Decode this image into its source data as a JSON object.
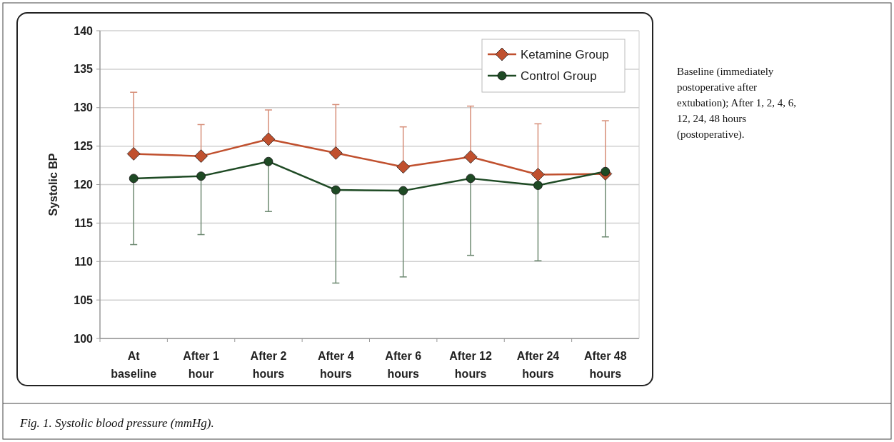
{
  "chart_data": {
    "type": "line",
    "ylabel": "Systolic BP",
    "categories": [
      "At baseline",
      "After 1 hour",
      "After 2 hours",
      "After 4 hours",
      "After 6 hours",
      "After 12 hours",
      "After 24 hours",
      "After 48 hours"
    ],
    "series": [
      {
        "name": "Ketamine Group",
        "color": "#c0502e",
        "marker": "diamond",
        "values": [
          124.0,
          123.7,
          125.9,
          124.1,
          122.3,
          123.6,
          121.3,
          121.4
        ],
        "errors": [
          [
            124.0,
            132.0
          ],
          [
            123.7,
            127.8
          ],
          [
            125.9,
            129.7
          ],
          [
            124.1,
            130.4
          ],
          [
            122.3,
            127.5
          ],
          [
            123.6,
            130.2
          ],
          [
            121.3,
            127.9
          ],
          [
            121.4,
            128.3
          ]
        ]
      },
      {
        "name": "Control Group",
        "color": "#1e4a24",
        "marker": "circle",
        "values": [
          120.8,
          121.1,
          123.0,
          119.3,
          119.2,
          120.8,
          119.9,
          121.7
        ],
        "errors": [
          [
            112.2,
            120.8
          ],
          [
            113.5,
            121.1
          ],
          [
            116.5,
            123.0
          ],
          [
            107.2,
            119.3
          ],
          [
            108.0,
            119.2
          ],
          [
            110.8,
            120.8
          ],
          [
            110.1,
            119.9
          ],
          [
            113.2,
            121.7
          ]
        ]
      }
    ],
    "ylim": [
      100,
      140
    ],
    "yticks": [
      100,
      105,
      110,
      115,
      120,
      125,
      130,
      135,
      140
    ],
    "grid": "y",
    "legend": "top right",
    "annotations": [
      "Baseline (immediately postoperative after extubation); After 1, 2, 4, 6, 12, 24, 48 hours (postoperative).",
      "Fig. 1. Systolic blood pressure (mmHg)."
    ]
  }
}
